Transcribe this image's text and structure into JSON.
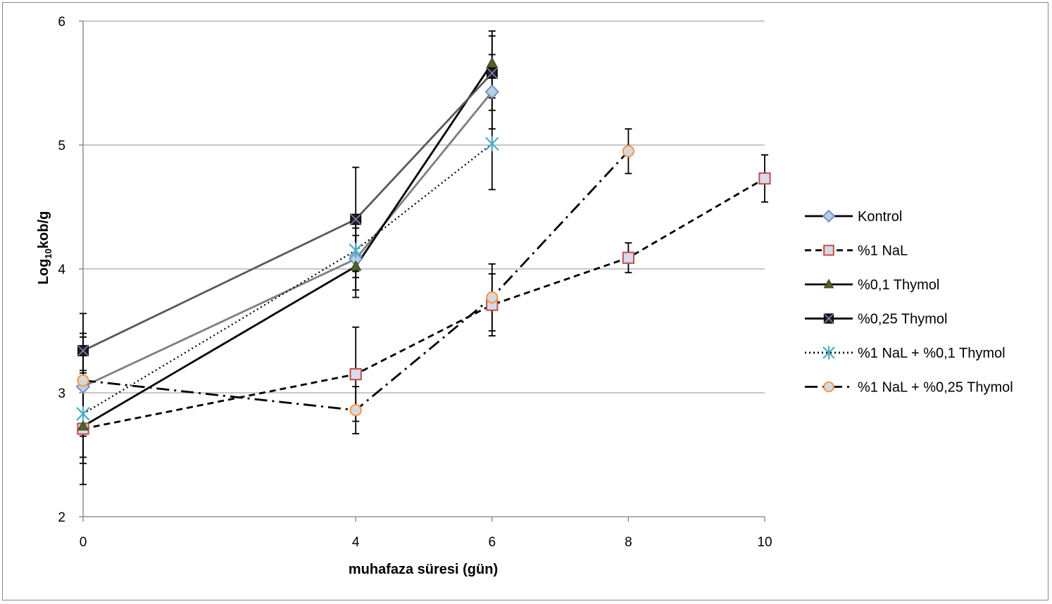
{
  "chart_data": {
    "type": "line",
    "xlabel": "muhafaza süresi (gün)",
    "ylabel_main": "Log",
    "ylabel_sub": "10",
    "ylabel_rest": "kob/g",
    "xlim": [
      0,
      10
    ],
    "ylim": [
      2,
      6
    ],
    "x_ticks": [
      0,
      4,
      6,
      8,
      10
    ],
    "y_ticks": [
      2,
      3,
      4,
      5,
      6
    ],
    "x_tick_labels": [
      "0",
      "4",
      "6",
      "8",
      "10"
    ],
    "y_tick_labels": [
      "2",
      "3",
      "4",
      "5",
      "6"
    ],
    "grid": "horizontal",
    "legend_position": "right",
    "series": [
      {
        "name": "Kontrol",
        "x": [
          0,
          4,
          6
        ],
        "y": [
          3.05,
          4.08,
          5.43
        ],
        "err": [
          0.4,
          0.25,
          0.3
        ],
        "line_color": "#7f7f7f",
        "dash": "solid",
        "marker": "diamond",
        "marker_fill": "#b9cde5",
        "marker_stroke": "#6c8ebf"
      },
      {
        "name": "%1 NaL",
        "x": [
          0,
          4,
          6,
          8,
          10
        ],
        "y": [
          2.71,
          3.15,
          3.71,
          4.09,
          4.73
        ],
        "err": [
          0.45,
          0.38,
          0.25,
          0.12,
          0.19
        ],
        "line_color": "#000000",
        "dash": "dashed",
        "marker": "square",
        "marker_fill": "#d9d9e8",
        "marker_stroke": "#c0504d"
      },
      {
        "name": "%0,1 Thymol",
        "x": [
          0,
          4,
          6
        ],
        "y": [
          2.73,
          4.02,
          5.66
        ],
        "err": [
          0.3,
          0.25,
          0.26
        ],
        "line_color": "#000000",
        "dash": "solid",
        "marker": "triangle",
        "marker_fill": "#4f6228",
        "marker_stroke": "#3b4a1e"
      },
      {
        "name": "%0,25 Thymol",
        "x": [
          0,
          4,
          6
        ],
        "y": [
          3.34,
          4.4,
          5.58
        ],
        "err": [
          0.3,
          0.42,
          0.3
        ],
        "line_color": "#595959",
        "dash": "solid",
        "marker": "square-x",
        "marker_fill": "#1f1f2e",
        "marker_stroke": "#000000"
      },
      {
        "name": "%1 NaL + %0,1 Thymol",
        "x": [
          0,
          4,
          6
        ],
        "y": [
          2.83,
          4.15,
          5.01
        ],
        "err": [
          0.35,
          0.22,
          0.37
        ],
        "line_color": "#000000",
        "dash": "dotted",
        "marker": "star",
        "marker_fill": "none",
        "marker_stroke": "#4bacc6"
      },
      {
        "name": "%1 NaL + %0,25 Thymol",
        "x": [
          0,
          4,
          6,
          8
        ],
        "y": [
          3.1,
          2.86,
          3.77,
          4.95
        ],
        "err": [
          0.38,
          0.19,
          0.27,
          0.18
        ],
        "line_color": "#000000",
        "dash": "dashdot",
        "marker": "circle",
        "marker_fill": "#d9d9d9",
        "marker_stroke": "#f79646"
      }
    ]
  }
}
